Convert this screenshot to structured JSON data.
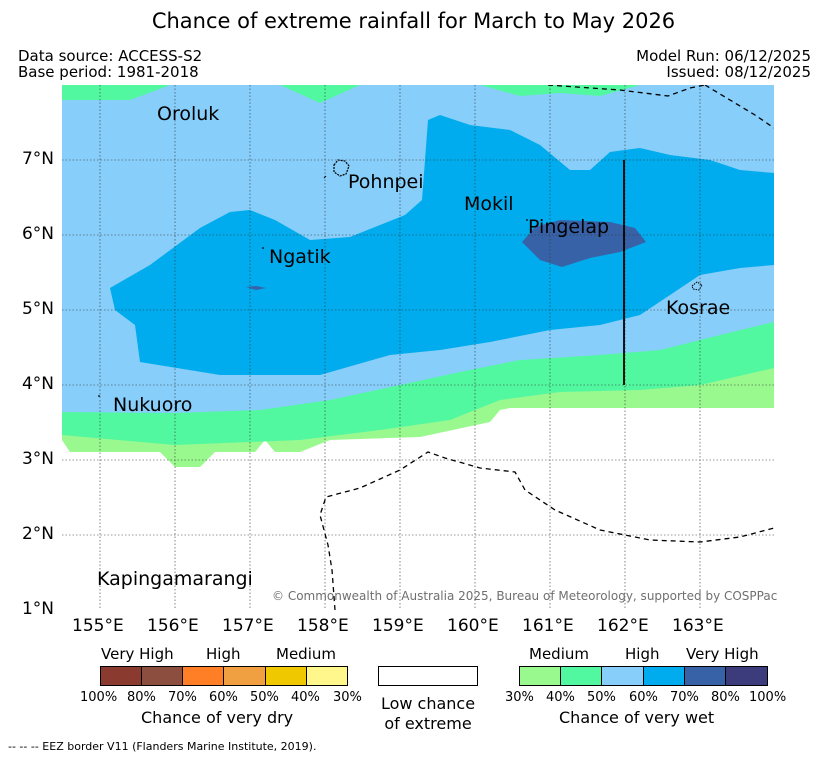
{
  "title": "Chance of extreme rainfall for March to May 2026",
  "meta": {
    "data_source": "Data source: ACCESS-S2",
    "base_period": "Base period: 1981-2018",
    "model_run": "Model Run: 06/12/2025",
    "issued": "Issued: 08/12/2025"
  },
  "map": {
    "latitude_labels": [
      "7°N",
      "6°N",
      "5°N",
      "4°N",
      "3°N",
      "2°N",
      "1°N"
    ],
    "longitude_labels": [
      "155°E",
      "156°E",
      "157°E",
      "158°E",
      "159°E",
      "160°E",
      "161°E",
      "162°E",
      "163°E"
    ],
    "places": [
      "Oroluk",
      "Pohnpei",
      "Mokil",
      "Pingelap",
      "Ngatik",
      "Kosrae",
      "Nukuoro",
      "Kapingamarangi"
    ],
    "copyright": "© Commonwealth of Australia 2025, Bureau of Meteorology, supported by COSPPac"
  },
  "legend": {
    "dry": {
      "categories": [
        "Very High",
        "High",
        "Medium"
      ],
      "percent_labels": [
        "100%",
        "80%",
        "70%",
        "60%",
        "50%",
        "40%",
        "30%"
      ],
      "colors": [
        "#8b3a30",
        "#8c4e3e",
        "#ff7f27",
        "#f0a040",
        "#f0c800",
        "#fff78c"
      ],
      "caption": "Chance of very dry"
    },
    "low": {
      "caption_line1": "Low chance",
      "caption_line2": "of extreme"
    },
    "wet": {
      "categories": [
        "Medium",
        "High",
        "Very High"
      ],
      "percent_labels": [
        "30%",
        "40%",
        "50%",
        "60%",
        "70%",
        "80%",
        "100%"
      ],
      "colors": [
        "#99f98e",
        "#52f8a0",
        "#87cefa",
        "#00aced",
        "#3862a8",
        "#3c3c7c"
      ],
      "caption": "Chance of very wet"
    },
    "eez_note": "--  --  -- EEZ border V11 (Flanders Marine Institute, 2019)."
  }
}
